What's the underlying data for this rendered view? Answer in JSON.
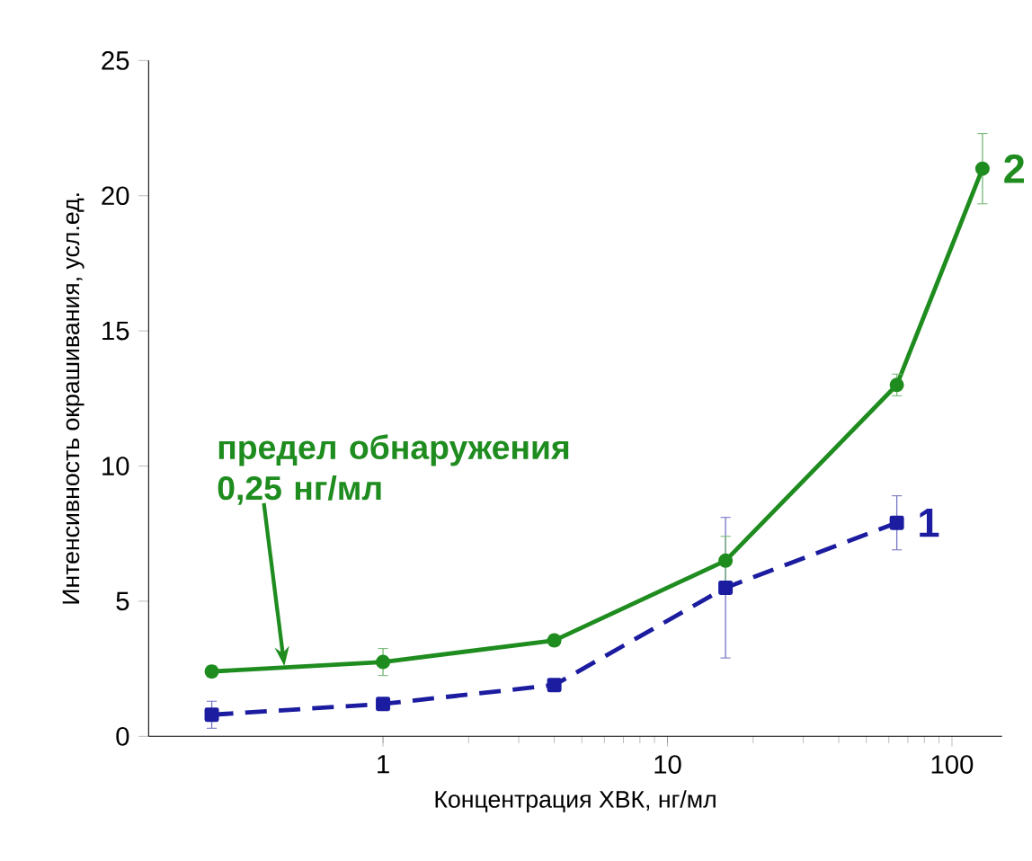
{
  "chart_data": {
    "type": "line",
    "xlabel": "Концентрация ХВК, нг/мл",
    "ylabel": "Интенсивность окрашивания, усл.ед.",
    "log": "x",
    "xlim": [
      0.15,
      150
    ],
    "xticks": [
      1,
      10,
      100
    ],
    "ylim": [
      0,
      25
    ],
    "yticks": [
      0,
      5,
      10,
      15,
      20,
      25
    ],
    "grid": false,
    "legend": false,
    "series": [
      {
        "name": "1",
        "color": "#1c1ca0",
        "line_style": "dashed",
        "marker": "square",
        "x": [
          0.25,
          1,
          4,
          16,
          64
        ],
        "values": [
          0.8,
          1.2,
          1.9,
          5.5,
          7.9
        ],
        "errors": [
          0.5,
          0.2,
          0.2,
          2.6,
          1.0
        ]
      },
      {
        "name": "2",
        "color": "#1e8c1e",
        "line_style": "solid",
        "marker": "circle",
        "x": [
          0.25,
          1,
          4,
          16,
          64,
          128
        ],
        "values": [
          2.4,
          2.75,
          3.55,
          6.5,
          13.0,
          21.0
        ],
        "errors": [
          0.2,
          0.5,
          0.2,
          0.9,
          0.4,
          1.3
        ]
      }
    ],
    "annotations": [
      {
        "text": "предел обнаружения 0,25 нг/мл",
        "x": 0.45,
        "y": 2.6
      }
    ]
  }
}
